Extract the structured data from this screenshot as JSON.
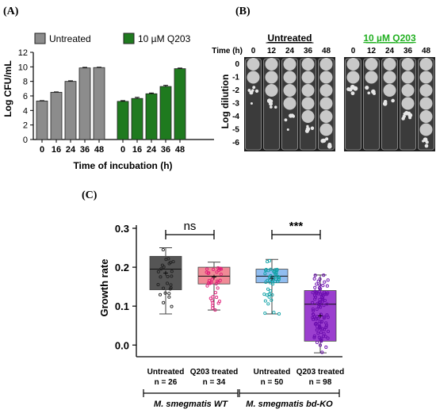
{
  "panel_labels": {
    "a": "(A)",
    "b": "(B)",
    "c": "(C)"
  },
  "chart_data": [
    {
      "type": "bar",
      "panel": "(A)",
      "legend": [
        "Untreated",
        "10 µM Q203"
      ],
      "legend_placement": "top",
      "ylabel": "Log CFU/mL",
      "xlabel": "Time of incubation (h)",
      "ylim": [
        0,
        12
      ],
      "yticks": [
        "0",
        "2",
        "4",
        "6",
        "8",
        "10",
        "12"
      ],
      "categories": [
        "0",
        "16",
        "24",
        "36",
        "48"
      ],
      "series": [
        {
          "name": "Untreated",
          "color": "#8c8c8c",
          "values": [
            5.3,
            6.5,
            8.0,
            9.85,
            9.9
          ],
          "errors": [
            0.05,
            0.05,
            0.08,
            0.08,
            0.05
          ]
        },
        {
          "name": "10 µM Q203",
          "color": "#1f7a1f",
          "values": [
            5.25,
            5.65,
            6.3,
            7.3,
            9.75
          ],
          "errors": [
            0.1,
            0.15,
            0.1,
            0.15,
            0.08
          ]
        }
      ]
    },
    {
      "type": "box",
      "panel": "(C)",
      "ylabel": "Growth rate",
      "ylim": [
        -0.03,
        0.3
      ],
      "yticks": [
        "0.0",
        "0.1",
        "0.2",
        "0.3"
      ],
      "groups": [
        {
          "label": "Untreated",
          "n": "n = 26",
          "min": 0.08,
          "q1": 0.142,
          "median": 0.195,
          "q3": 0.228,
          "max": 0.25,
          "mean": 0.185,
          "fill": "#555555",
          "dot": "#222222",
          "count": 26
        },
        {
          "label": "Q203 treated",
          "n": "n = 34",
          "min": 0.09,
          "q1": 0.157,
          "median": 0.177,
          "q3": 0.2,
          "max": 0.213,
          "mean": 0.175,
          "fill": "#f08a96",
          "dot": "#e0207a",
          "count": 34
        },
        {
          "label": "Untreated",
          "n": "n = 50",
          "min": 0.08,
          "q1": 0.16,
          "median": 0.177,
          "q3": 0.195,
          "max": 0.22,
          "mean": 0.172,
          "fill": "#90bdf0",
          "dot": "#13a3a8",
          "count": 50
        },
        {
          "label": "Q203 treated",
          "n": "n = 98",
          "min": -0.02,
          "q1": 0.01,
          "median": 0.105,
          "q3": 0.14,
          "max": 0.18,
          "mean": 0.075,
          "fill": "#9b3fcf",
          "dot": "#6a0dad",
          "count": 98
        }
      ],
      "significance": [
        {
          "from": 0,
          "to": 1,
          "label": "ns"
        },
        {
          "from": 2,
          "to": 3,
          "label": "***"
        }
      ],
      "strains": [
        "M. smegmatis WT",
        "M. smegmatis bd-KO"
      ]
    }
  ],
  "panel_b": {
    "titles": [
      "Untreated",
      "10 µM Q203"
    ],
    "time_label": "Time (h)",
    "times": [
      "0",
      "12",
      "24",
      "36",
      "48"
    ],
    "ylabel": "Log dilution",
    "dilutions": [
      "0",
      "-1",
      "-2",
      "-3",
      "-4",
      "-5",
      "-6"
    ]
  }
}
